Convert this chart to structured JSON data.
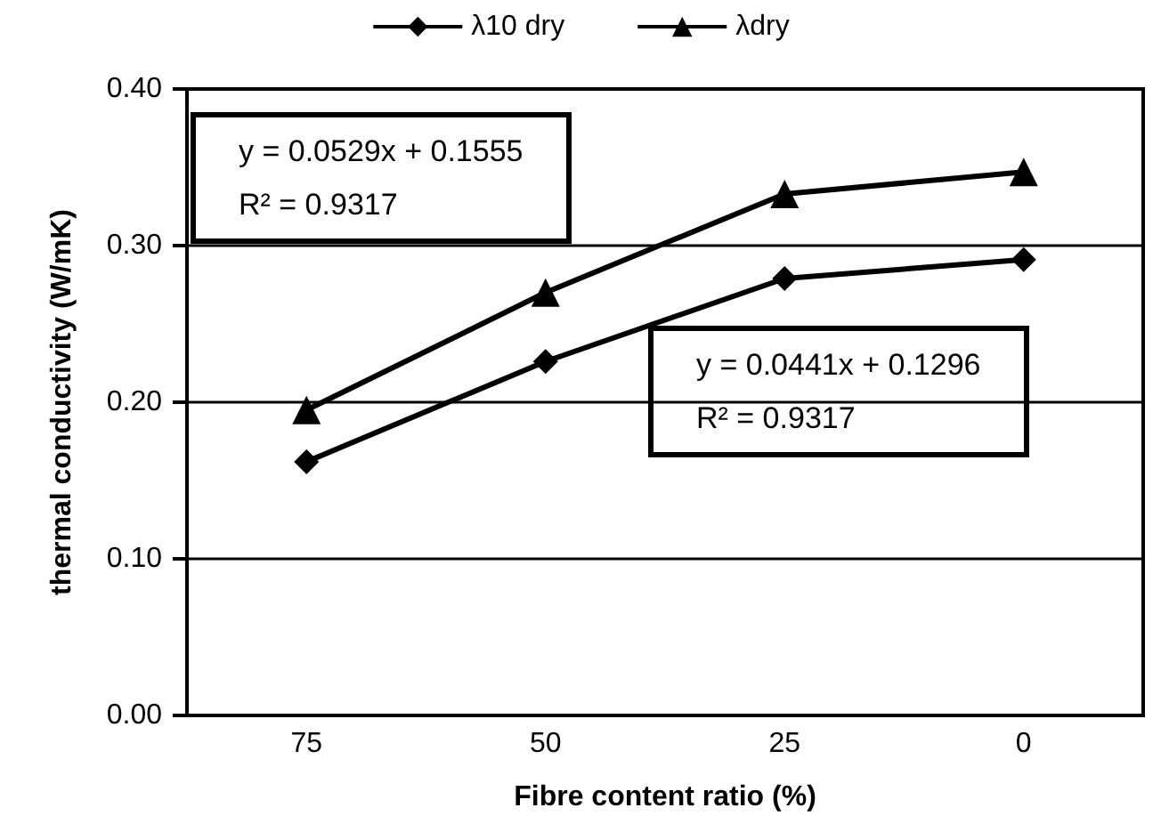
{
  "chart_data": {
    "type": "line",
    "xlabel": "Fibre content ratio (%)",
    "ylabel": "thermal conductivity (W/mK)",
    "categories": [
      "75",
      "50",
      "25",
      "0"
    ],
    "series": [
      {
        "name": "λ10 dry",
        "color": "#000000",
        "marker": "diamond",
        "values": [
          0.162,
          0.226,
          0.279,
          0.291
        ]
      },
      {
        "name": "λdry",
        "color": "#000000",
        "marker": "triangle",
        "values": [
          0.195,
          0.27,
          0.333,
          0.347
        ]
      }
    ],
    "ylim": [
      0,
      0.4
    ],
    "yticks": [
      {
        "value": 0,
        "label": "0.00"
      },
      {
        "value": 0.1,
        "label": "0.10"
      },
      {
        "value": 0.2,
        "label": "0.20"
      },
      {
        "value": 0.3,
        "label": "0.30"
      },
      {
        "value": 0.4,
        "label": "0.40"
      }
    ],
    "grid": "y",
    "legend": "top",
    "line_style": "solid",
    "annotations": [
      "y = 0.0529x + 0.1555\nR² = 0.9317",
      "y = 0.0441x + 0.1296\nR² = 0.9317"
    ]
  }
}
